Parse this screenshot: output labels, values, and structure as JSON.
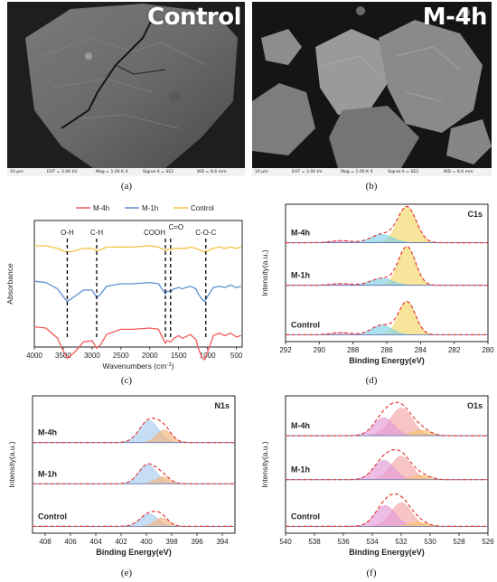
{
  "panels": {
    "a": {
      "caption": "(a)",
      "title": "Control",
      "scale_bar": "10 μm",
      "eht": "EHT = 3.00 kV",
      "mag": "Mag = 1.00 K X",
      "signal": "Signal A = SE2",
      "wd": "WD = 8.6 mm"
    },
    "b": {
      "caption": "(b)",
      "title": "M-4h",
      "scale_bar": "10 μm",
      "eht": "EHT = 3.00 kV",
      "mag": "Mag = 1.00 K X",
      "signal": "Signal A = SE2",
      "wd": "WD = 8.6 mm"
    },
    "c": {
      "caption": "(c)"
    },
    "d": {
      "caption": "(d)"
    },
    "e": {
      "caption": "(e)"
    },
    "f": {
      "caption": "(f)"
    }
  },
  "chart_data": [
    {
      "panel": "c",
      "type": "line",
      "xlabel": "Wavenumbers (cm-1)",
      "xlabel_text": "Wavenumbers (cm",
      "xlabel_sup": "-1",
      "xlabel_close": ")",
      "ylabel": "Absorbance",
      "xlim": [
        4000,
        400
      ],
      "x_ticks": [
        "4000",
        "3500",
        "3000",
        "2500",
        "2000",
        "1500",
        "1000",
        "500"
      ],
      "legend": [
        "M-4h",
        "M-1h",
        "Control"
      ],
      "legend_position": "top-center",
      "series": [
        {
          "name": "M-4h",
          "color": "#f05a5a",
          "offset": 0.16,
          "points": [
            [
              4000,
              0.0
            ],
            [
              3800,
              0.01
            ],
            [
              3600,
              0.09
            ],
            [
              3500,
              0.19
            ],
            [
              3430,
              0.25
            ],
            [
              3300,
              0.2
            ],
            [
              3150,
              0.12
            ],
            [
              3000,
              0.11
            ],
            [
              2920,
              0.17
            ],
            [
              2850,
              0.14
            ],
            [
              2750,
              0.06
            ],
            [
              2500,
              0.02
            ],
            [
              2300,
              0.02
            ],
            [
              2000,
              0.01
            ],
            [
              1850,
              0.02
            ],
            [
              1730,
              0.13
            ],
            [
              1700,
              0.11
            ],
            [
              1640,
              0.12
            ],
            [
              1580,
              0.09
            ],
            [
              1500,
              0.07
            ],
            [
              1440,
              0.09
            ],
            [
              1380,
              0.08
            ],
            [
              1300,
              0.06
            ],
            [
              1200,
              0.1
            ],
            [
              1160,
              0.17
            ],
            [
              1100,
              0.24
            ],
            [
              1050,
              0.26
            ],
            [
              1000,
              0.2
            ],
            [
              900,
              0.07
            ],
            [
              800,
              0.05
            ],
            [
              700,
              0.07
            ],
            [
              600,
              0.05
            ],
            [
              500,
              0.08
            ],
            [
              420,
              0.07
            ]
          ]
        },
        {
          "name": "M-1h",
          "color": "#5b8fd0",
          "offset": 0.52,
          "points": [
            [
              4000,
              0.0
            ],
            [
              3800,
              0.01
            ],
            [
              3600,
              0.06
            ],
            [
              3500,
              0.12
            ],
            [
              3430,
              0.16
            ],
            [
              3300,
              0.12
            ],
            [
              3150,
              0.07
            ],
            [
              3000,
              0.07
            ],
            [
              2920,
              0.13
            ],
            [
              2850,
              0.1
            ],
            [
              2750,
              0.04
            ],
            [
              2500,
              0.02
            ],
            [
              2300,
              0.02
            ],
            [
              2000,
              0.01
            ],
            [
              1850,
              0.02
            ],
            [
              1730,
              0.1
            ],
            [
              1700,
              0.08
            ],
            [
              1640,
              0.08
            ],
            [
              1580,
              0.06
            ],
            [
              1500,
              0.05
            ],
            [
              1440,
              0.06
            ],
            [
              1380,
              0.05
            ],
            [
              1300,
              0.04
            ],
            [
              1200,
              0.06
            ],
            [
              1160,
              0.1
            ],
            [
              1100,
              0.14
            ],
            [
              1050,
              0.16
            ],
            [
              1000,
              0.12
            ],
            [
              900,
              0.05
            ],
            [
              800,
              0.04
            ],
            [
              700,
              0.05
            ],
            [
              600,
              0.03
            ],
            [
              500,
              0.05
            ],
            [
              420,
              0.04
            ]
          ]
        },
        {
          "name": "Control",
          "color": "#f5c242",
          "offset": 0.8,
          "points": [
            [
              4000,
              0.0
            ],
            [
              3800,
              0.0
            ],
            [
              3600,
              0.02
            ],
            [
              3500,
              0.04
            ],
            [
              3430,
              0.05
            ],
            [
              3300,
              0.04
            ],
            [
              3150,
              0.02
            ],
            [
              3000,
              0.02
            ],
            [
              2920,
              0.04
            ],
            [
              2850,
              0.03
            ],
            [
              2750,
              0.01
            ],
            [
              2500,
              0.01
            ],
            [
              2300,
              0.01
            ],
            [
              2000,
              0.0
            ],
            [
              1850,
              0.01
            ],
            [
              1730,
              0.04
            ],
            [
              1700,
              0.03
            ],
            [
              1640,
              0.03
            ],
            [
              1580,
              0.02
            ],
            [
              1500,
              0.02
            ],
            [
              1440,
              0.02
            ],
            [
              1380,
              0.02
            ],
            [
              1300,
              0.01
            ],
            [
              1200,
              0.02
            ],
            [
              1160,
              0.03
            ],
            [
              1100,
              0.04
            ],
            [
              1050,
              0.05
            ],
            [
              1000,
              0.04
            ],
            [
              900,
              0.02
            ],
            [
              800,
              0.01
            ],
            [
              700,
              0.02
            ],
            [
              600,
              0.01
            ],
            [
              500,
              0.02
            ],
            [
              420,
              0.01
            ]
          ]
        }
      ],
      "annotations": [
        {
          "label": "O-H",
          "x": 3430
        },
        {
          "label": "C-H",
          "x": 2920
        },
        {
          "label": "COOH",
          "x": 1730
        },
        {
          "label": "C=O",
          "x": 1640
        },
        {
          "label": "C-O-C",
          "x": 1030
        }
      ]
    },
    {
      "panel": "d",
      "type": "line",
      "title": "C1s",
      "xlabel": "Binding Energy(eV)",
      "ylabel": "Intensity(a.u.)",
      "xlim": [
        292,
        280
      ],
      "x_ticks": [
        "292",
        "290",
        "288",
        "286",
        "284",
        "282",
        "280"
      ],
      "series": [
        {
          "name": "M-4h",
          "offset": 0.72,
          "peaks": [
            {
              "center": 284.8,
              "height": 0.26,
              "width": 0.55,
              "color": "#f5d565"
            },
            {
              "center": 286.3,
              "height": 0.06,
              "width": 0.65,
              "color": "#7fd3e6"
            },
            {
              "center": 288.7,
              "height": 0.015,
              "width": 0.6,
              "color": "#e6a6c8"
            }
          ]
        },
        {
          "name": "M-1h",
          "offset": 0.41,
          "peaks": [
            {
              "center": 284.8,
              "height": 0.28,
              "width": 0.5,
              "color": "#f5d565"
            },
            {
              "center": 286.3,
              "height": 0.05,
              "width": 0.65,
              "color": "#7fd3e6"
            },
            {
              "center": 288.7,
              "height": 0.012,
              "width": 0.6,
              "color": "#e6a6c8"
            }
          ]
        },
        {
          "name": "Control",
          "offset": 0.05,
          "peaks": [
            {
              "center": 284.8,
              "height": 0.24,
              "width": 0.5,
              "color": "#f5d565"
            },
            {
              "center": 286.3,
              "height": 0.07,
              "width": 0.6,
              "color": "#7fd3e6"
            },
            {
              "center": 288.7,
              "height": 0.015,
              "width": 0.6,
              "color": "#e6a6c8"
            }
          ]
        }
      ]
    },
    {
      "panel": "e",
      "type": "line",
      "title": "N1s",
      "xlabel": "Binding Energy(eV)",
      "ylabel": "Intensity(a.u.)",
      "xlim": [
        409,
        393
      ],
      "x_ticks": [
        "408",
        "406",
        "404",
        "402",
        "400",
        "398",
        "396",
        "394"
      ],
      "series": [
        {
          "name": "M-4h",
          "offset": 0.66,
          "peaks": [
            {
              "center": 399.8,
              "height": 0.16,
              "width": 0.75,
              "color": "#a8cdf0"
            },
            {
              "center": 398.6,
              "height": 0.09,
              "width": 0.6,
              "color": "#f2b27a"
            }
          ]
        },
        {
          "name": "M-1h",
          "offset": 0.36,
          "peaks": [
            {
              "center": 399.9,
              "height": 0.14,
              "width": 0.7,
              "color": "#a8cdf0"
            },
            {
              "center": 398.7,
              "height": 0.05,
              "width": 0.55,
              "color": "#f2b27a"
            }
          ]
        },
        {
          "name": "Control",
          "offset": 0.05,
          "peaks": [
            {
              "center": 399.8,
              "height": 0.09,
              "width": 0.7,
              "color": "#a8cdf0"
            },
            {
              "center": 398.8,
              "height": 0.06,
              "width": 0.55,
              "color": "#f2b27a"
            }
          ]
        }
      ]
    },
    {
      "panel": "f",
      "type": "line",
      "title": "O1s",
      "xlabel": "Binding Energy(eV)",
      "ylabel": "Intensity(a.u.)",
      "xlim": [
        540,
        526
      ],
      "x_ticks": [
        "540",
        "538",
        "536",
        "534",
        "532",
        "530",
        "528",
        "526"
      ],
      "series": [
        {
          "name": "M-4h",
          "offset": 0.71,
          "peaks": [
            {
              "center": 532.0,
              "height": 0.2,
              "width": 0.75,
              "color": "#f3a6a3"
            },
            {
              "center": 533.2,
              "height": 0.13,
              "width": 0.7,
              "color": "#e49ad9"
            },
            {
              "center": 530.6,
              "height": 0.04,
              "width": 0.6,
              "color": "#f5c06a"
            }
          ]
        },
        {
          "name": "M-1h",
          "offset": 0.39,
          "peaks": [
            {
              "center": 532.0,
              "height": 0.17,
              "width": 0.7,
              "color": "#f3a6a3"
            },
            {
              "center": 533.2,
              "height": 0.14,
              "width": 0.7,
              "color": "#e49ad9"
            },
            {
              "center": 530.6,
              "height": 0.03,
              "width": 0.6,
              "color": "#f5c06a"
            }
          ]
        },
        {
          "name": "Control",
          "offset": 0.05,
          "peaks": [
            {
              "center": 532.0,
              "height": 0.17,
              "width": 0.7,
              "color": "#f3a6a3"
            },
            {
              "center": 533.1,
              "height": 0.15,
              "width": 0.7,
              "color": "#e49ad9"
            },
            {
              "center": 530.8,
              "height": 0.03,
              "width": 0.6,
              "color": "#f5c06a"
            }
          ]
        }
      ]
    }
  ]
}
